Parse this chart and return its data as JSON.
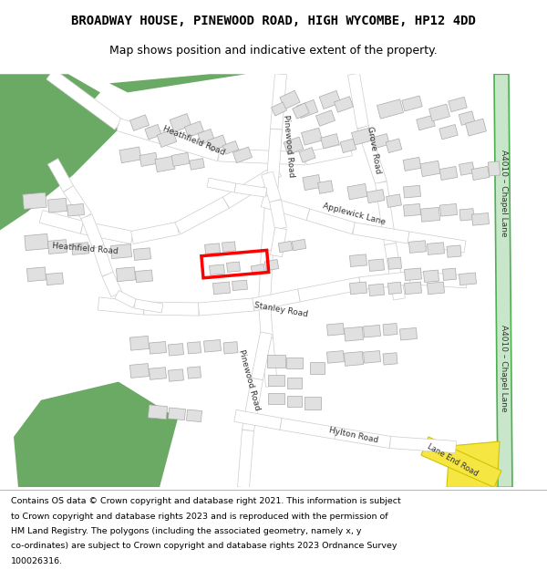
{
  "title_line1": "BROADWAY HOUSE, PINEWOOD ROAD, HIGH WYCOMBE, HP12 4DD",
  "title_line2": "Map shows position and indicative extent of the property.",
  "footer_lines": [
    "Contains OS data © Crown copyright and database right 2021. This information is subject",
    "to Crown copyright and database rights 2023 and is reproduced with the permission of",
    "HM Land Registry. The polygons (including the associated geometry, namely x, y",
    "co-ordinates) are subject to Crown copyright and database rights 2023 Ordnance Survey",
    "100026316."
  ],
  "bg_color": "#ffffff",
  "map_bg": "#f2f2f2",
  "road_color": "#ffffff",
  "road_border": "#cccccc",
  "building_color": "#e0e0e0",
  "building_border": "#aaaaaa",
  "green_color": "#6aaa64",
  "highlight_color": "#ff0000",
  "road_a_color": "#c8e6c9",
  "road_a_border": "#4caf50",
  "road_yellow": "#f5e642",
  "road_yellow_border": "#d4c200"
}
